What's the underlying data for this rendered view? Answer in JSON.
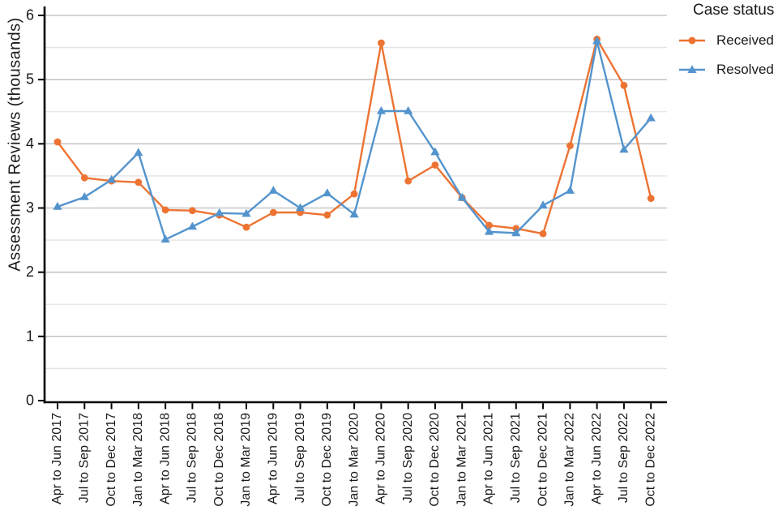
{
  "chart_data": {
    "type": "line",
    "title": "",
    "xlabel": "",
    "ylabel": "Assessment Reviews (thousands)",
    "ylim": [
      0,
      6
    ],
    "yticks": [
      0,
      1,
      2,
      3,
      4,
      5,
      6
    ],
    "grid": "horizontal only; major gray lines at integers, lighter minor lines at 0.5 steps",
    "x_tick_rotation": 90,
    "legend_position": "top-right",
    "legend_title": "Case status",
    "categories": [
      "Apr to Jun 2017",
      "Jul to Sep 2017",
      "Oct to Dec 2017",
      "Jan to Mar 2018",
      "Apr to Jun 2018",
      "Jul to Sep 2018",
      "Oct to Dec 2018",
      "Jan to Mar 2019",
      "Apr to Jun 2019",
      "Jul to Sep 2019",
      "Oct to Dec 2019",
      "Jan to Mar 2020",
      "Apr to Jun 2020",
      "Jul to Sep 2020",
      "Oct to Dec 2020",
      "Jan to Mar 2021",
      "Apr to Jun 2021",
      "Jul to Sep 2021",
      "Oct to Dec 2021",
      "Jan to Mar 2022",
      "Apr to Jun 2022",
      "Jul to Sep 2022",
      "Oct to Dec 2022"
    ],
    "series": [
      {
        "name": "Received",
        "marker": "circle",
        "color": "#ED7332",
        "values": [
          4.03,
          3.47,
          3.42,
          3.4,
          2.97,
          2.96,
          2.89,
          2.7,
          2.93,
          2.93,
          2.89,
          3.22,
          5.57,
          3.42,
          3.67,
          3.16,
          2.73,
          2.68,
          2.6,
          3.97,
          5.63,
          4.91,
          3.15
        ]
      },
      {
        "name": "Resolved",
        "marker": "triangle",
        "color": "#5494CE",
        "values": [
          3.02,
          3.17,
          3.44,
          3.86,
          2.51,
          2.71,
          2.92,
          2.91,
          3.27,
          3.0,
          3.23,
          2.9,
          4.51,
          4.51,
          3.87,
          3.16,
          2.63,
          2.61,
          3.04,
          3.27,
          5.6,
          3.91,
          4.4
        ]
      }
    ],
    "colors": {
      "axis": "#000000",
      "tick_text": "#1a1a1a",
      "major_grid": "#c8c8c8",
      "minor_grid": "#e4e4e4"
    }
  }
}
